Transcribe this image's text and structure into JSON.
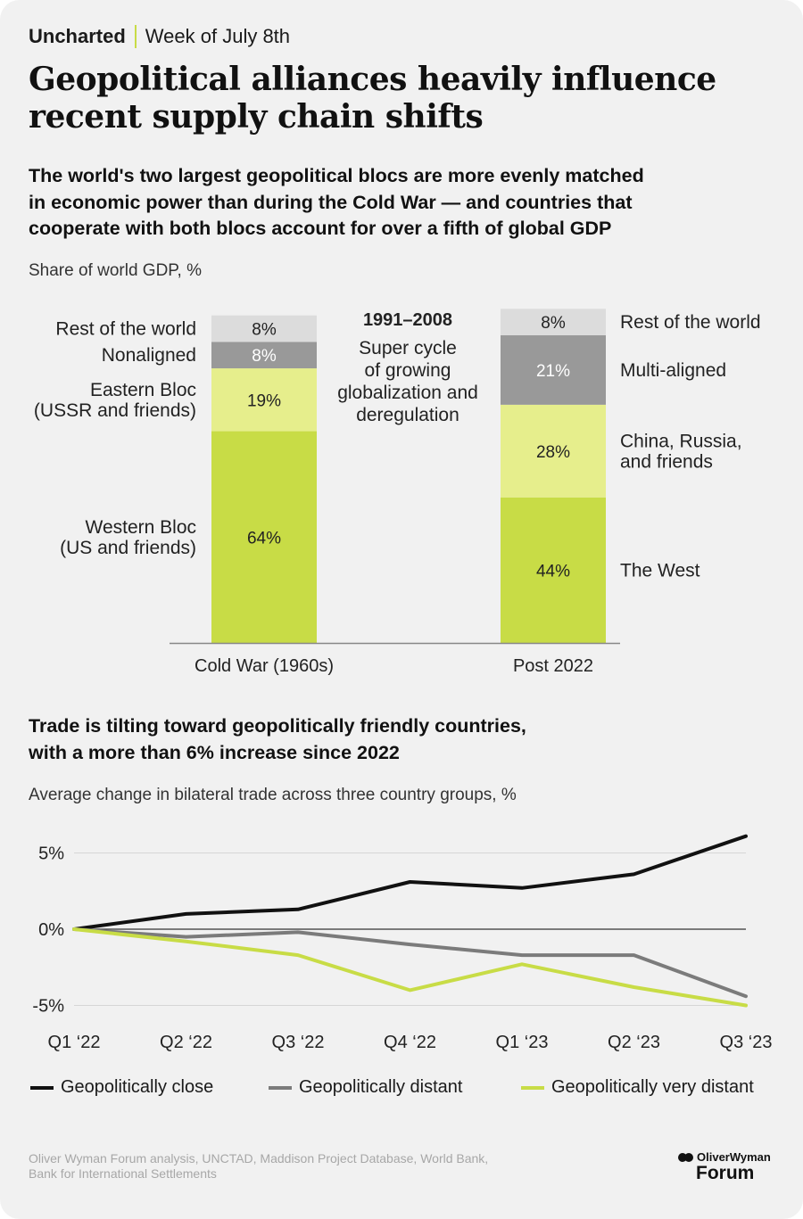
{
  "header": {
    "brand": "Uncharted",
    "date": "Week of July 8th",
    "headline_line1": "Geopolitical alliances heavily influence",
    "headline_line2": "recent supply chain shifts"
  },
  "colors": {
    "accent": "#c8dc46",
    "background": "#f1f1f1",
    "seg_western": "#c8dc46",
    "seg_eastern": "#e6ee8c",
    "seg_nonaligned": "#999999",
    "seg_rest": "#dcdcdc",
    "line_close": "#111111",
    "line_distant": "#7b7b7b",
    "line_very_distant": "#c8dc46"
  },
  "section1": {
    "subhead_line1": "The world's two largest geopolitical blocs are more evenly matched",
    "subhead_line2": "in economic power than during the Cold War — and countries that",
    "subhead_line3": "cooperate with both blocs account for over a fifth of global GDP",
    "units": "Share of world GDP, %"
  },
  "section2": {
    "subhead_line1": "Trade is tilting toward geopolitically friendly countries,",
    "subhead_line2": "with a more than 6% increase since 2022",
    "units": "Average change in bilateral trade across three country groups, %"
  },
  "chart_data": [
    {
      "type": "bar",
      "stacked": true,
      "title": "Share of world GDP, %",
      "categories": [
        "Cold War (1960s)",
        "Post 2022"
      ],
      "annotation": {
        "title": "1991–2008",
        "lines": [
          "Super cycle",
          "of growing",
          "globalization and",
          "deregulation"
        ]
      },
      "bars": [
        {
          "category": "Cold War (1960s)",
          "segments": [
            {
              "name": "Western Bloc (US and friends)",
              "label_lines": [
                "Western Bloc",
                "(US and friends)"
              ],
              "value": 64,
              "label": "64%",
              "color": "#c8dc46"
            },
            {
              "name": "Eastern Bloc (USSR and friends)",
              "label_lines": [
                "Eastern Bloc",
                "(USSR and friends)"
              ],
              "value": 19,
              "label": "19%",
              "color": "#e6ee8c"
            },
            {
              "name": "Nonaligned",
              "label_lines": [
                "Nonaligned"
              ],
              "value": 8,
              "label": "8%",
              "color": "#999999"
            },
            {
              "name": "Rest of the world",
              "label_lines": [
                "Rest of the world"
              ],
              "value": 8,
              "label": "8%",
              "color": "#dcdcdc"
            }
          ]
        },
        {
          "category": "Post 2022",
          "segments": [
            {
              "name": "The West",
              "label_lines": [
                "The West"
              ],
              "value": 44,
              "label": "44%",
              "color": "#c8dc46"
            },
            {
              "name": "China, Russia, and friends",
              "label_lines": [
                "China, Russia,",
                "and friends"
              ],
              "value": 28,
              "label": "28%",
              "color": "#e6ee8c"
            },
            {
              "name": "Multi-aligned",
              "label_lines": [
                "Multi-aligned"
              ],
              "value": 21,
              "label": "21%",
              "color": "#999999"
            },
            {
              "name": "Rest of the world",
              "label_lines": [
                "Rest of the world"
              ],
              "value": 8,
              "label": "8%",
              "color": "#dcdcdc"
            }
          ]
        }
      ]
    },
    {
      "type": "line",
      "title": "Average change in bilateral trade across three country groups, %",
      "x": [
        "Q1 ‘22",
        "Q2 ‘22",
        "Q3 ‘22",
        "Q4 ‘22",
        "Q1 ‘23",
        "Q2 ‘23",
        "Q3 ‘23"
      ],
      "yticks": [
        {
          "value": 5,
          "label": "5%"
        },
        {
          "value": 0,
          "label": "0%"
        },
        {
          "value": -5,
          "label": "-5%"
        }
      ],
      "ylim": [
        -5,
        6.5
      ],
      "series": [
        {
          "name": "Geopolitically close",
          "color": "#111111",
          "values": [
            0,
            1.0,
            1.3,
            3.1,
            2.7,
            3.6,
            6.1
          ]
        },
        {
          "name": "Geopolitically distant",
          "color": "#7b7b7b",
          "values": [
            0,
            -0.5,
            -0.2,
            -1.0,
            -1.7,
            -1.7,
            -4.4
          ]
        },
        {
          "name": "Geopolitically very distant",
          "color": "#c8dc46",
          "values": [
            0,
            -0.8,
            -1.7,
            -4.0,
            -2.3,
            -3.8,
            -5.0
          ]
        }
      ]
    }
  ],
  "source": {
    "line1": "Oliver Wyman Forum analysis, UNCTAD, Maddison Project Database, World Bank,",
    "line2": "Bank for International Settlements"
  },
  "logo": {
    "top": "OliverWyman",
    "bottom": "Forum"
  }
}
